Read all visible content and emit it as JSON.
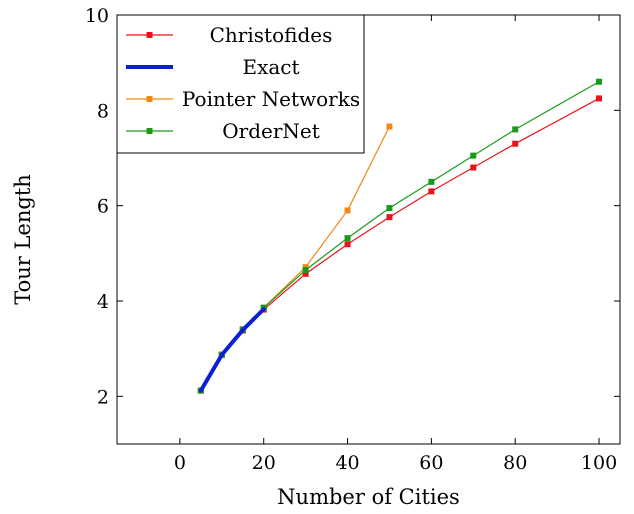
{
  "chart_data": {
    "type": "line",
    "xlabel": "Number of Cities",
    "ylabel": "Tour Length",
    "xlim": [
      -15,
      105
    ],
    "ylim": [
      1,
      10
    ],
    "xticks": [
      0,
      20,
      40,
      60,
      80,
      100
    ],
    "yticks": [
      2,
      4,
      6,
      8,
      10
    ],
    "grid": false,
    "legend_position": "top-left",
    "series": [
      {
        "name": "Christofides",
        "color": "#e8141b",
        "marker": "square",
        "x": [
          5,
          10,
          15,
          20,
          30,
          40,
          50,
          60,
          70,
          80,
          100
        ],
        "y": [
          2.12,
          2.87,
          3.38,
          3.82,
          4.57,
          5.19,
          5.76,
          6.3,
          6.8,
          7.3,
          8.25
        ]
      },
      {
        "name": "Exact",
        "color": "#0a1fd6",
        "marker": "none",
        "x": [
          5,
          10,
          15,
          20
        ],
        "y": [
          2.12,
          2.87,
          3.39,
          3.83
        ]
      },
      {
        "name": "Pointer Networks",
        "color": "#f08a14",
        "marker": "square",
        "x": [
          5,
          10,
          15,
          20,
          30,
          40,
          50
        ],
        "y": [
          2.12,
          2.88,
          3.41,
          3.86,
          4.71,
          5.9,
          7.66
        ]
      },
      {
        "name": "OrderNet",
        "color": "#1a9a1a",
        "marker": "square",
        "x": [
          5,
          10,
          15,
          20,
          30,
          40,
          50,
          60,
          70,
          80,
          100
        ],
        "y": [
          2.12,
          2.87,
          3.4,
          3.86,
          4.65,
          5.32,
          5.95,
          6.5,
          7.05,
          7.6,
          8.6
        ]
      }
    ]
  }
}
